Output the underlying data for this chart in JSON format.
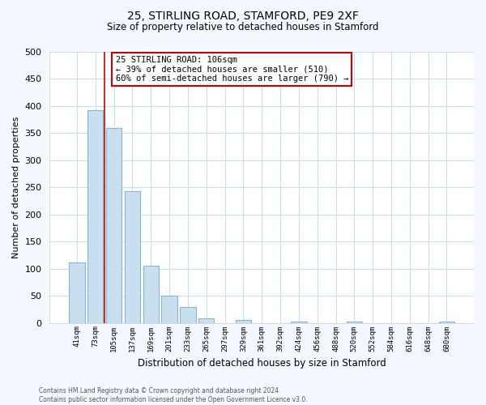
{
  "title_line1": "25, STIRLING ROAD, STAMFORD, PE9 2XF",
  "title_line2": "Size of property relative to detached houses in Stamford",
  "xlabel": "Distribution of detached houses by size in Stamford",
  "ylabel": "Number of detached properties",
  "bar_labels": [
    "41sqm",
    "73sqm",
    "105sqm",
    "137sqm",
    "169sqm",
    "201sqm",
    "233sqm",
    "265sqm",
    "297sqm",
    "329sqm",
    "361sqm",
    "392sqm",
    "424sqm",
    "456sqm",
    "488sqm",
    "520sqm",
    "552sqm",
    "584sqm",
    "616sqm",
    "648sqm",
    "680sqm"
  ],
  "bar_values": [
    112,
    393,
    360,
    243,
    105,
    50,
    30,
    8,
    0,
    5,
    0,
    0,
    2,
    0,
    0,
    2,
    0,
    0,
    0,
    0,
    2
  ],
  "bar_color": "#c8dff0",
  "bar_edge_color": "#8ab4d4",
  "ylim": [
    0,
    500
  ],
  "yticks": [
    0,
    50,
    100,
    150,
    200,
    250,
    300,
    350,
    400,
    450,
    500
  ],
  "property_label": "25 STIRLING ROAD: 106sqm",
  "annotation_line1": "← 39% of detached houses are smaller (510)",
  "annotation_line2": "60% of semi-detached houses are larger (790) →",
  "annotation_box_color": "#ffffff",
  "annotation_box_edge": "#cc0000",
  "property_line_color": "#cc0000",
  "footnote_line1": "Contains HM Land Registry data © Crown copyright and database right 2024.",
  "footnote_line2": "Contains public sector information licensed under the Open Government Licence v3.0.",
  "grid_color": "#c8dff0",
  "background_color": "#ffffff",
  "fig_background_color": "#f5f9ff"
}
